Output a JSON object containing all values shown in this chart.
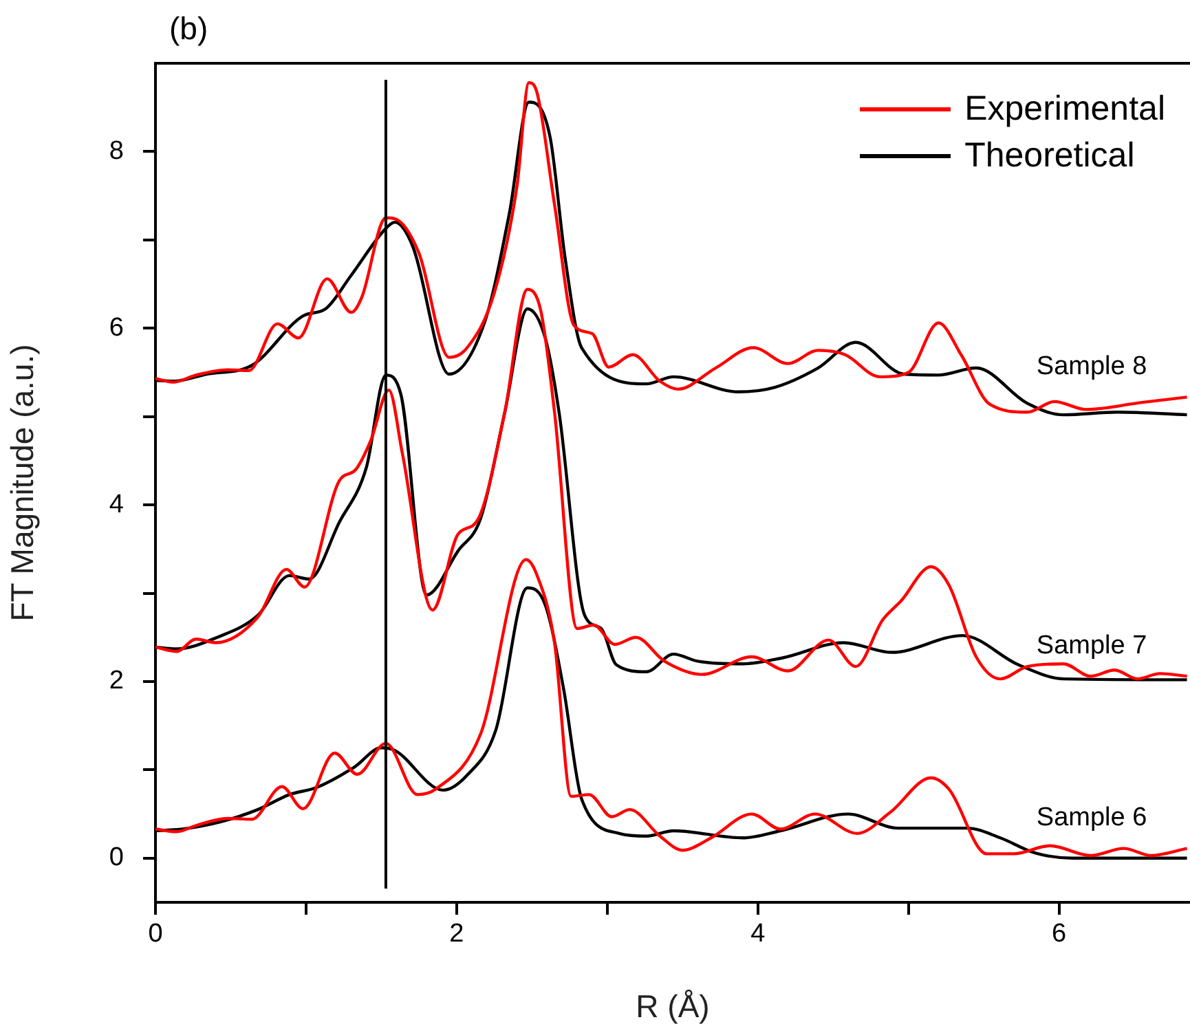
{
  "chart_data": {
    "type": "line",
    "title": "(b)",
    "xlabel": "R (Å)",
    "ylabel": "FT Magnitude (a.u.)",
    "xlim": [
      0,
      6.87
    ],
    "ylim": [
      -0.5,
      9
    ],
    "xticks": [
      0,
      {
        "value": 1,
        "label": null
      },
      2,
      {
        "value": 3,
        "label": null
      },
      4,
      {
        "value": 5,
        "label": null
      },
      6
    ],
    "yticks": [
      0,
      {
        "value": 1,
        "label": null
      },
      2,
      {
        "value": 3,
        "label": null
      },
      4,
      {
        "value": 5,
        "label": null
      },
      6,
      {
        "value": 7,
        "label": null
      },
      8
    ],
    "grid": false,
    "legend": "top right",
    "marker": "none",
    "line_style": "solid",
    "ref_lines": [
      {
        "axis": "x",
        "value": 1.53,
        "color": "#000000"
      }
    ],
    "annotations": [
      "Sample 8",
      "Sample 7",
      "Sample 6"
    ],
    "series": [
      {
        "name": "Experimental",
        "color": "#ff0000",
        "x": [
          0,
          0.12,
          0.27,
          0.48,
          0.62,
          0.81,
          0.95,
          1.14,
          1.3,
          1.37,
          1.53,
          1.59,
          1.75,
          1.95,
          2.07,
          2.25,
          2.4,
          2.48,
          2.53,
          2.65,
          2.78,
          2.9,
          3.01,
          3.17,
          3.35,
          3.47,
          3.72,
          3.97,
          4.2,
          4.4,
          4.58,
          4.81,
          5.0,
          5.2,
          5.35,
          5.54,
          5.79,
          5.97,
          6.18,
          6.55,
          6.85
        ],
        "values": [
          5.43,
          5.39,
          5.47,
          5.53,
          5.52,
          6.05,
          5.89,
          6.56,
          6.18,
          6.35,
          7.25,
          7.24,
          6.85,
          5.67,
          5.78,
          6.4,
          7.6,
          8.78,
          8.69,
          7.4,
          6.03,
          5.94,
          5.56,
          5.7,
          5.4,
          5.31,
          5.55,
          5.78,
          5.6,
          5.75,
          5.7,
          5.45,
          5.5,
          6.06,
          5.7,
          5.14,
          5.05,
          5.17,
          5.08,
          5.16,
          5.22
        ]
      },
      {
        "name": "Theoretical",
        "color": "#000000",
        "x": [
          0,
          0.12,
          0.34,
          0.64,
          0.98,
          1.13,
          1.3,
          1.53,
          1.59,
          1.71,
          1.95,
          2.19,
          2.35,
          2.48,
          2.62,
          2.72,
          2.83,
          3.26,
          3.44,
          3.87,
          4.11,
          4.4,
          4.65,
          4.97,
          5.2,
          5.45,
          5.79,
          6.03,
          6.39,
          6.85
        ],
        "values": [
          5.41,
          5.4,
          5.48,
          5.58,
          6.14,
          6.22,
          6.6,
          7.13,
          7.2,
          6.92,
          5.48,
          6.09,
          7.3,
          8.56,
          8.17,
          6.8,
          5.78,
          5.37,
          5.45,
          5.28,
          5.33,
          5.55,
          5.84,
          5.48,
          5.47,
          5.55,
          5.15,
          5.02,
          5.05,
          5.02
        ]
      },
      {
        "color": "#ff0000",
        "x": [
          0,
          0.14,
          0.27,
          0.4,
          0.68,
          0.87,
          0.99,
          1.22,
          1.33,
          1.43,
          1.55,
          1.64,
          1.84,
          2.01,
          2.14,
          2.32,
          2.47,
          2.56,
          2.65,
          2.8,
          2.91,
          3.05,
          3.19,
          3.38,
          3.63,
          3.96,
          4.2,
          4.47,
          4.65,
          4.83,
          4.95,
          5.15,
          5.27,
          5.45,
          5.61,
          5.79,
          6.03,
          6.21,
          6.37,
          6.52,
          6.67,
          6.85
        ],
        "values": [
          2.39,
          2.34,
          2.48,
          2.44,
          2.73,
          3.27,
          3.07,
          4.27,
          4.4,
          4.73,
          5.3,
          4.58,
          2.81,
          3.67,
          3.83,
          5.05,
          6.44,
          6.19,
          5.05,
          2.6,
          2.64,
          2.42,
          2.5,
          2.23,
          2.08,
          2.28,
          2.12,
          2.47,
          2.17,
          2.7,
          2.91,
          3.3,
          3.09,
          2.28,
          2.03,
          2.17,
          2.2,
          2.06,
          2.13,
          2.03,
          2.09,
          2.06
        ]
      },
      {
        "color": "#000000",
        "x": [
          0,
          0.14,
          0.41,
          0.68,
          0.89,
          1.02,
          1.22,
          1.4,
          1.53,
          1.63,
          1.8,
          2.01,
          2.16,
          2.32,
          2.47,
          2.59,
          2.68,
          2.85,
          2.96,
          3.06,
          3.26,
          3.44,
          3.6,
          3.9,
          4.17,
          4.57,
          4.89,
          5.36,
          5.73,
          6.03,
          6.85
        ],
        "values": [
          2.39,
          2.37,
          2.5,
          2.75,
          3.2,
          3.16,
          3.8,
          4.42,
          5.47,
          5.25,
          2.98,
          3.48,
          3.85,
          5.05,
          6.22,
          5.88,
          5.05,
          2.75,
          2.6,
          2.19,
          2.11,
          2.31,
          2.23,
          2.2,
          2.27,
          2.44,
          2.33,
          2.52,
          2.19,
          2.03,
          2.02
        ]
      },
      {
        "color": "#ff0000",
        "x": [
          0,
          0.14,
          0.27,
          0.48,
          0.64,
          0.84,
          0.98,
          1.19,
          1.34,
          1.53,
          1.74,
          1.86,
          2.16,
          2.46,
          2.53,
          2.65,
          2.76,
          2.88,
          3.03,
          3.15,
          3.35,
          3.5,
          3.69,
          3.96,
          4.15,
          4.38,
          4.66,
          4.88,
          5.15,
          5.27,
          5.52,
          5.7,
          5.94,
          6.21,
          6.43,
          6.61,
          6.85
        ],
        "values": [
          0.33,
          0.3,
          0.37,
          0.45,
          0.44,
          0.81,
          0.56,
          1.19,
          0.95,
          1.3,
          0.72,
          0.78,
          1.41,
          3.38,
          3.22,
          2.44,
          0.7,
          0.72,
          0.47,
          0.55,
          0.25,
          0.09,
          0.23,
          0.5,
          0.33,
          0.5,
          0.28,
          0.52,
          0.91,
          0.78,
          0.05,
          0.05,
          0.14,
          0.03,
          0.11,
          0.03,
          0.11
        ]
      },
      {
        "color": "#000000",
        "x": [
          0,
          0.18,
          0.43,
          0.68,
          0.89,
          1.07,
          1.32,
          1.5,
          1.59,
          1.91,
          2.07,
          2.26,
          2.47,
          2.59,
          2.71,
          2.83,
          3.08,
          3.26,
          3.44,
          3.9,
          4.15,
          4.6,
          4.93,
          5.39,
          5.61,
          5.84,
          6.09,
          6.85
        ],
        "values": [
          0.31,
          0.33,
          0.41,
          0.55,
          0.72,
          0.8,
          1.03,
          1.25,
          1.22,
          0.77,
          0.94,
          1.45,
          3.06,
          2.86,
          1.92,
          0.67,
          0.28,
          0.25,
          0.31,
          0.23,
          0.31,
          0.5,
          0.34,
          0.34,
          0.23,
          0.06,
          0,
          0
        ]
      }
    ]
  }
}
